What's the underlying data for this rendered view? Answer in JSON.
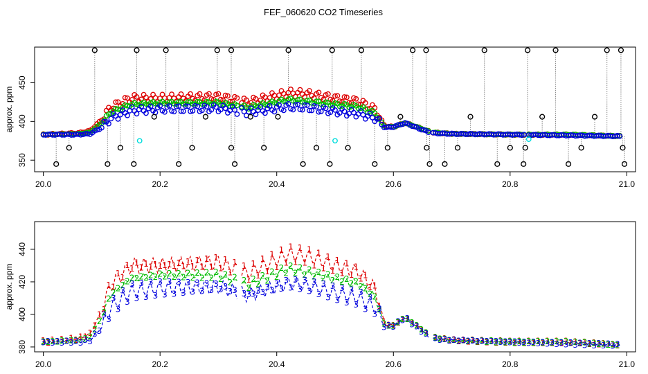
{
  "figure": {
    "title": "FEF_060620  CO2 Timeseries"
  },
  "chart_data": [
    {
      "type": "scatter",
      "ylabel": "approx. ppm",
      "xlabel": "",
      "xlim": [
        19.985,
        21.015
      ],
      "ylim": [
        335,
        496
      ],
      "xticks": [
        20.0,
        20.2,
        20.4,
        20.6,
        20.8,
        21.0
      ],
      "xtick_labels": [
        "20.0",
        "20.2",
        "20.4",
        "20.6",
        "20.8",
        "21.0"
      ],
      "yticks": [
        350,
        400,
        450
      ],
      "ytick_labels": [
        "350",
        "400",
        "450"
      ],
      "colors": {
        "s1": "#dd0000",
        "s2": "#00bb00",
        "s3": "#0000dd",
        "spike": "#000000",
        "cyan": "#00dddd",
        "drop": "#888888"
      },
      "spikes": [
        {
          "x": 20.088,
          "y": 492
        },
        {
          "x": 20.16,
          "y": 492
        },
        {
          "x": 20.21,
          "y": 492
        },
        {
          "x": 20.298,
          "y": 492
        },
        {
          "x": 20.322,
          "y": 492
        },
        {
          "x": 20.42,
          "y": 492
        },
        {
          "x": 20.495,
          "y": 492
        },
        {
          "x": 20.545,
          "y": 492
        },
        {
          "x": 20.633,
          "y": 492
        },
        {
          "x": 20.656,
          "y": 492
        },
        {
          "x": 20.756,
          "y": 492
        },
        {
          "x": 20.83,
          "y": 492
        },
        {
          "x": 20.878,
          "y": 492
        },
        {
          "x": 20.966,
          "y": 492
        },
        {
          "x": 20.99,
          "y": 492
        },
        {
          "x": 20.022,
          "y": 345
        },
        {
          "x": 20.044,
          "y": 366
        },
        {
          "x": 20.11,
          "y": 345
        },
        {
          "x": 20.132,
          "y": 366
        },
        {
          "x": 20.155,
          "y": 345
        },
        {
          "x": 20.19,
          "y": 406
        },
        {
          "x": 20.232,
          "y": 345
        },
        {
          "x": 20.255,
          "y": 366
        },
        {
          "x": 20.278,
          "y": 406
        },
        {
          "x": 20.322,
          "y": 366
        },
        {
          "x": 20.328,
          "y": 345
        },
        {
          "x": 20.355,
          "y": 406
        },
        {
          "x": 20.378,
          "y": 366
        },
        {
          "x": 20.402,
          "y": 406
        },
        {
          "x": 20.445,
          "y": 345
        },
        {
          "x": 20.468,
          "y": 366
        },
        {
          "x": 20.491,
          "y": 345
        },
        {
          "x": 20.522,
          "y": 366
        },
        {
          "x": 20.568,
          "y": 345
        },
        {
          "x": 20.59,
          "y": 366
        },
        {
          "x": 20.612,
          "y": 406
        },
        {
          "x": 20.657,
          "y": 366
        },
        {
          "x": 20.662,
          "y": 345
        },
        {
          "x": 20.688,
          "y": 345
        },
        {
          "x": 20.71,
          "y": 366
        },
        {
          "x": 20.732,
          "y": 406
        },
        {
          "x": 20.778,
          "y": 345
        },
        {
          "x": 20.8,
          "y": 366
        },
        {
          "x": 20.823,
          "y": 345
        },
        {
          "x": 20.826,
          "y": 366
        },
        {
          "x": 20.855,
          "y": 406
        },
        {
          "x": 20.9,
          "y": 345
        },
        {
          "x": 20.922,
          "y": 366
        },
        {
          "x": 20.945,
          "y": 406
        },
        {
          "x": 20.993,
          "y": 366
        },
        {
          "x": 20.996,
          "y": 345
        }
      ],
      "cyan_points": [
        {
          "x": 20.165,
          "y": 375
        },
        {
          "x": 20.5,
          "y": 375
        },
        {
          "x": 20.832,
          "y": 377
        }
      ]
    },
    {
      "type": "line",
      "ylabel": "approx. ppm",
      "xlabel": "",
      "xlim": [
        19.985,
        21.015
      ],
      "ylim": [
        377,
        457
      ],
      "xticks": [
        20.0,
        20.2,
        20.4,
        20.6,
        20.8,
        21.0
      ],
      "xtick_labels": [
        "20.0",
        "20.2",
        "20.4",
        "20.6",
        "20.8",
        "21.0"
      ],
      "yticks": [
        380,
        400,
        420,
        440
      ],
      "ytick_labels": [
        "380",
        "400",
        "420",
        "440"
      ],
      "series": [
        {
          "marker": "1",
          "color": "#dd0000"
        },
        {
          "marker": "2",
          "color": "#00bb00"
        },
        {
          "marker": "3",
          "color": "#0000dd"
        }
      ]
    }
  ],
  "series_profile": {
    "x": [
      20.0,
      20.06,
      20.08,
      20.1,
      20.115,
      20.15,
      20.2,
      20.3,
      20.35,
      20.42,
      20.45,
      20.5,
      20.54,
      20.57,
      20.585,
      20.6,
      20.62,
      20.64,
      20.665,
      20.7,
      20.8,
      20.9,
      20.99
    ],
    "s1": [
      383,
      385,
      388,
      402,
      418,
      430,
      430,
      432,
      425,
      437,
      436,
      430,
      426,
      415,
      394,
      393,
      398,
      393,
      386,
      384,
      383,
      383,
      381
    ],
    "s2": [
      383,
      384,
      386,
      398,
      412,
      422,
      424,
      424,
      418,
      428,
      426,
      422,
      419,
      410,
      393,
      393,
      398,
      393,
      386,
      384,
      383,
      383,
      381
    ],
    "s3": [
      383,
      383,
      384,
      392,
      404,
      414,
      416,
      417,
      412,
      419,
      418,
      413,
      410,
      404,
      392,
      393,
      398,
      392,
      385,
      384,
      383,
      382,
      381
    ],
    "step": 0.004,
    "gaps": [
      [
        20.335,
        20.338
      ],
      [
        20.662,
        20.668
      ],
      [
        20.826,
        20.832
      ]
    ]
  }
}
